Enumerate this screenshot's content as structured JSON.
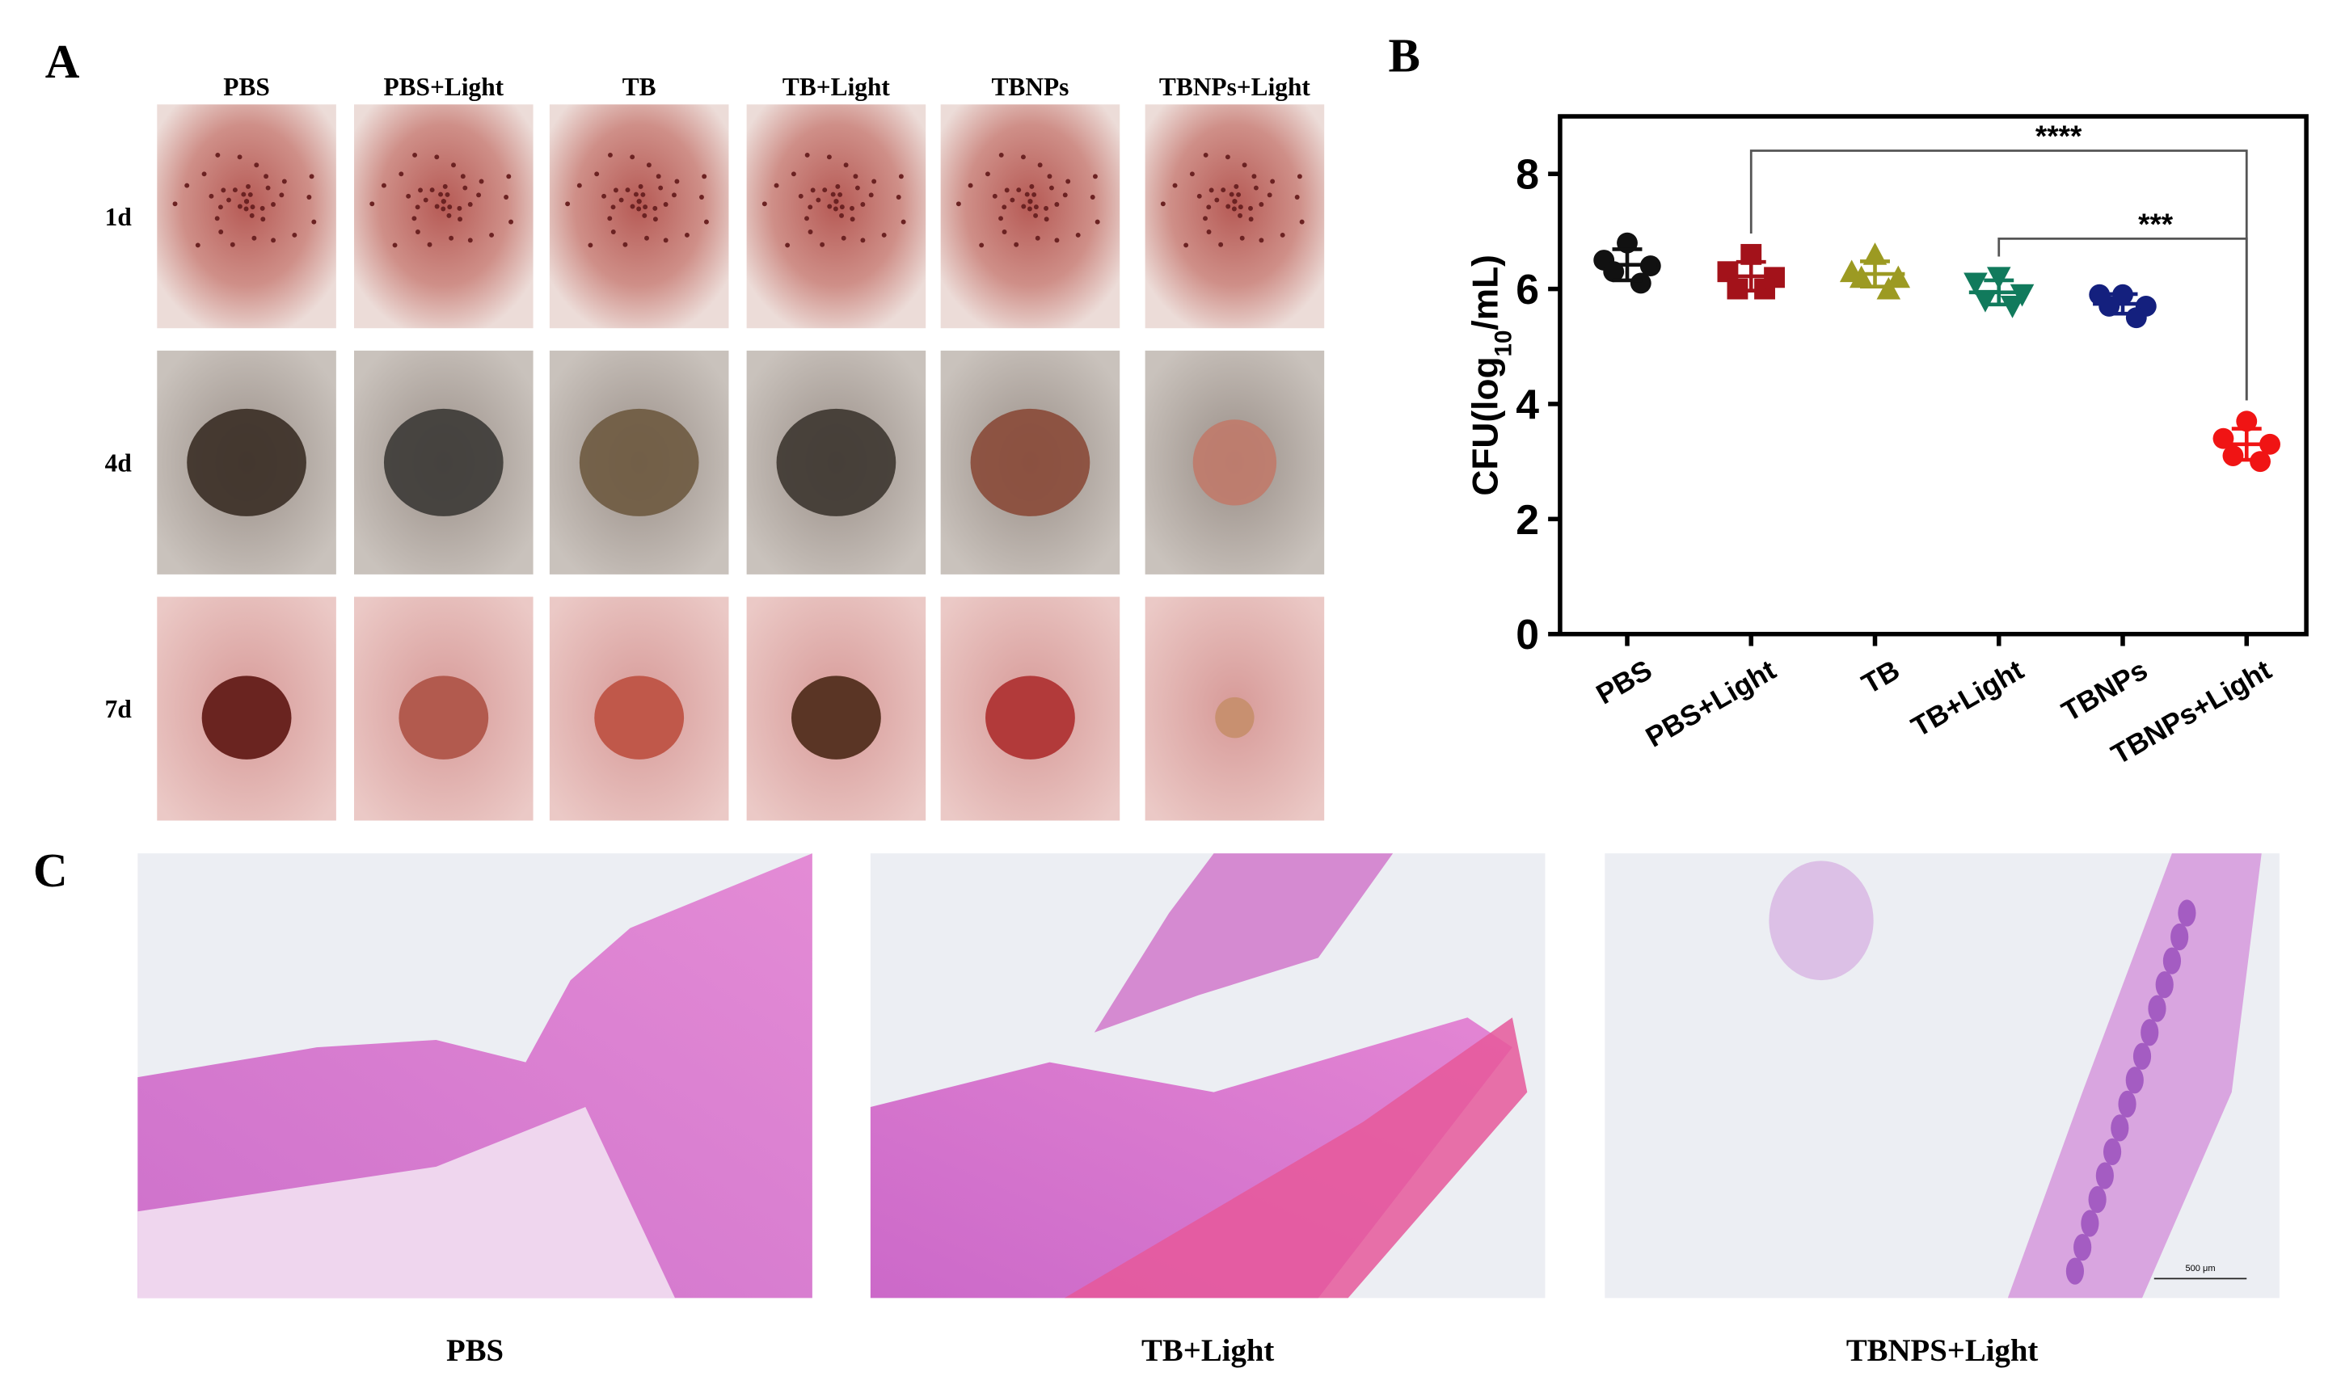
{
  "panel_a": {
    "label": "A",
    "columns": [
      "PBS",
      "PBS+Light",
      "TB",
      "TB+Light",
      "TBNPs",
      "TBNPs+Light"
    ],
    "rows": [
      "1d",
      "4d",
      "7d"
    ]
  },
  "panel_b": {
    "label": "B"
  },
  "chart_data": {
    "type": "scatter",
    "ylabel_parts": [
      "CFU(log",
      "10",
      "/mL)"
    ],
    "categories": [
      "PBS",
      "PBS+Light",
      "TB",
      "TB+Light",
      "TBNPs",
      "TBNPs+Light"
    ],
    "ylim": [
      0,
      9
    ],
    "yticks": [
      0,
      2,
      4,
      6,
      8
    ],
    "series": [
      {
        "color": "#111111",
        "marker": "circle",
        "values": [
          6.8,
          6.5,
          6.4,
          6.3,
          6.1
        ],
        "mean": 6.42,
        "sd": 0.27
      },
      {
        "color": "#a3121a",
        "marker": "square",
        "values": [
          6.6,
          6.3,
          6.2,
          6.0,
          6.0
        ],
        "mean": 6.22,
        "sd": 0.25
      },
      {
        "color": "#9c9a22",
        "marker": "triangle-up",
        "values": [
          6.6,
          6.3,
          6.2,
          6.2,
          6.0
        ],
        "mean": 6.26,
        "sd": 0.22
      },
      {
        "color": "#117a5c",
        "marker": "triangle-down",
        "values": [
          6.2,
          6.1,
          5.9,
          5.8,
          5.7
        ],
        "mean": 5.94,
        "sd": 0.21
      },
      {
        "color": "#14207e",
        "marker": "circle",
        "values": [
          5.9,
          5.9,
          5.7,
          5.7,
          5.5
        ],
        "mean": 5.74,
        "sd": 0.17
      },
      {
        "color": "#f01414",
        "marker": "circle",
        "values": [
          3.7,
          3.4,
          3.3,
          3.1,
          3.0
        ],
        "mean": 3.3,
        "sd": 0.27
      }
    ],
    "annotations": [
      {
        "text": "****",
        "from": 1,
        "to": 5
      },
      {
        "text": "***",
        "from": 3,
        "to": 5
      }
    ]
  },
  "panel_c": {
    "label": "C",
    "images": [
      "PBS",
      "TB+Light",
      "TBNPS+Light"
    ],
    "scale_bar": "500 μm"
  }
}
